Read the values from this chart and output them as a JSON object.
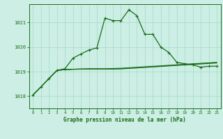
{
  "bg_color": "#cceee4",
  "grid_color": "#aaddcc",
  "line_color": "#1a6b1a",
  "title": "Graphe pression niveau de la mer (hPa)",
  "hours": [
    0,
    1,
    2,
    3,
    4,
    5,
    6,
    7,
    8,
    9,
    10,
    11,
    12,
    13,
    14,
    15,
    16,
    17,
    18,
    19,
    20,
    21,
    22,
    23
  ],
  "ylim": [
    1017.5,
    1021.75
  ],
  "yticks": [
    1018,
    1019,
    1020,
    1021
  ],
  "series_main": [
    1018.05,
    1018.38,
    1018.72,
    1019.05,
    1019.12,
    1019.55,
    1019.72,
    1019.88,
    1019.97,
    1021.18,
    1021.08,
    1021.08,
    1021.52,
    1021.28,
    1020.52,
    1020.52,
    1020.0,
    1019.78,
    1019.38,
    1019.32,
    1019.28,
    1019.18,
    1019.22,
    1019.22
  ],
  "series_flat1": [
    1018.05,
    1018.38,
    1018.72,
    1019.05,
    1019.08,
    1019.1,
    1019.11,
    1019.12,
    1019.12,
    1019.12,
    1019.13,
    1019.14,
    1019.16,
    1019.18,
    1019.2,
    1019.22,
    1019.24,
    1019.26,
    1019.28,
    1019.3,
    1019.32,
    1019.34,
    1019.36,
    1019.38
  ],
  "series_flat2": [
    1018.05,
    1018.38,
    1018.72,
    1019.05,
    1019.08,
    1019.1,
    1019.11,
    1019.11,
    1019.11,
    1019.11,
    1019.11,
    1019.12,
    1019.14,
    1019.16,
    1019.18,
    1019.2,
    1019.22,
    1019.25,
    1019.27,
    1019.29,
    1019.31,
    1019.33,
    1019.35,
    1019.37
  ],
  "series_flat3": [
    1018.05,
    1018.38,
    1018.72,
    1019.05,
    1019.08,
    1019.09,
    1019.1,
    1019.1,
    1019.1,
    1019.1,
    1019.1,
    1019.11,
    1019.13,
    1019.15,
    1019.17,
    1019.19,
    1019.21,
    1019.23,
    1019.25,
    1019.27,
    1019.29,
    1019.31,
    1019.33,
    1019.35
  ]
}
